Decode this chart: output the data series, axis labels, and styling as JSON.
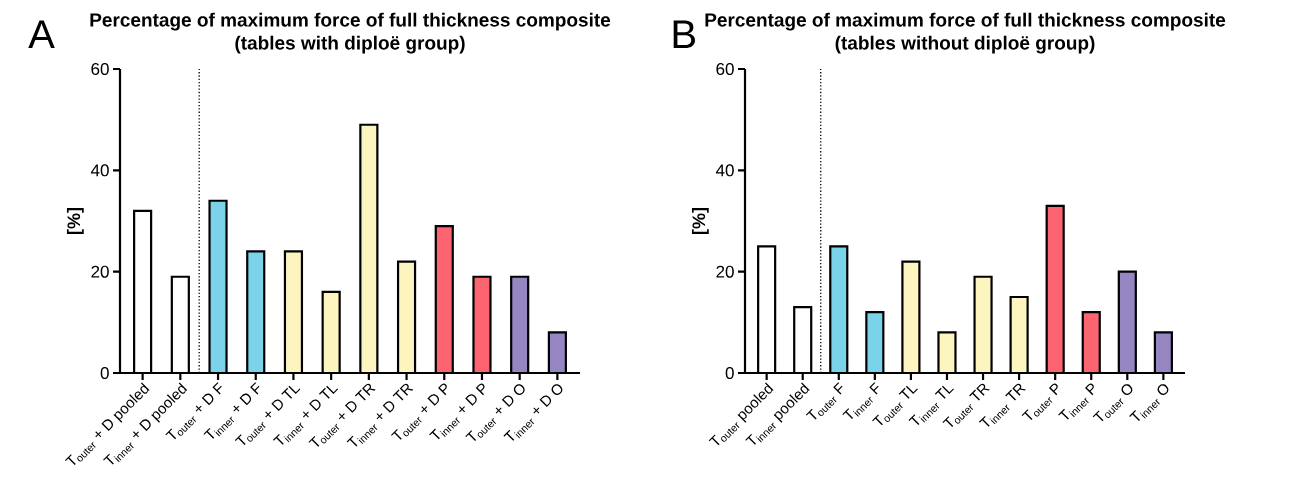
{
  "chart_data": [
    {
      "type": "bar",
      "title": "Percentage of maximum force of full thickness composite",
      "subtitle": "(tables with diploë group)",
      "ylabel": "[%]",
      "categories": [
        "T$_{outer}$ + D pooled",
        "T$_{inner}$ + D pooled",
        "T$_{outer}$ + D F",
        "T$_{inner}$ + D F",
        "T$_{outer}$ + D TL",
        "T$_{inner}$ + D TL",
        "T$_{outer}$ + D TR",
        "T$_{inner}$ + D TR",
        "T$_{outer}$ + D P",
        "T$_{inner}$ + D P",
        "T$_{outer}$ + D O",
        "T$_{inner}$ + D O"
      ],
      "values": [
        32,
        19,
        34,
        24,
        24,
        16,
        49,
        22,
        29,
        19,
        19,
        8
      ],
      "colors": [
        "#ffffff",
        "#ffffff",
        "#7ad3e8",
        "#7ad3e8",
        "#fdf5c0",
        "#fdf5c0",
        "#fdf5c0",
        "#fdf5c0",
        "#fc6471",
        "#fc6471",
        "#9585c0",
        "#9585c0"
      ],
      "ylim": [
        0,
        60
      ],
      "yticks": [
        0,
        20,
        40,
        60
      ],
      "annotations": [
        "A"
      ]
    },
    {
      "type": "bar",
      "title": "Percentage of maximum force of full thickness composite",
      "subtitle": "(tables without diploë group)",
      "ylabel": "[%]",
      "categories": [
        "T$_{outer}$ pooled",
        "T$_{inner}$ pooled",
        "T$_{outer}$ F",
        "T$_{inner}$ F",
        "T$_{outer}$ TL",
        "T$_{inner}$ TL",
        "T$_{outer}$ TR",
        "T$_{inner}$ TR",
        "T$_{outer}$ P",
        "T$_{inner}$ P",
        "T$_{outer}$ O",
        "T$_{inner}$ O"
      ],
      "values": [
        25,
        13,
        25,
        12,
        22,
        8,
        19,
        15,
        33,
        12,
        20,
        8
      ],
      "colors": [
        "#ffffff",
        "#ffffff",
        "#7ad3e8",
        "#7ad3e8",
        "#fdf5c0",
        "#fdf5c0",
        "#fdf5c0",
        "#fdf5c0",
        "#fc6471",
        "#fc6471",
        "#9585c0",
        "#9585c0"
      ],
      "ylim": [
        0,
        60
      ],
      "yticks": [
        0,
        20,
        40,
        60
      ],
      "annotations": [
        "B"
      ]
    }
  ]
}
